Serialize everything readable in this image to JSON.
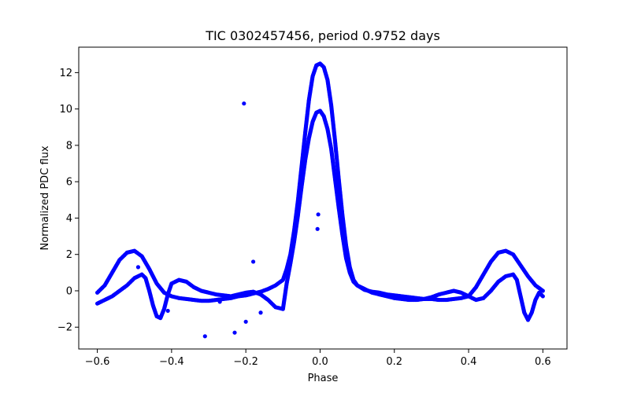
{
  "chart_data": {
    "type": "scatter",
    "title": "TIC 0302457456, period 0.9752 days",
    "xlabel": "Phase",
    "ylabel": "Normalized PDC flux",
    "xlim": [
      -0.65,
      0.665
    ],
    "ylim": [
      -3.2,
      13.4
    ],
    "xticks": [
      -0.6,
      -0.4,
      -0.2,
      0.0,
      0.2,
      0.4,
      0.6
    ],
    "xtick_labels": [
      "−0.6",
      "−0.4",
      "−0.2",
      "0.0",
      "0.2",
      "0.4",
      "0.6"
    ],
    "yticks": [
      -2,
      0,
      2,
      4,
      6,
      8,
      10,
      12
    ],
    "ytick_labels": [
      "−2",
      "0",
      "2",
      "4",
      "6",
      "8",
      "10",
      "12"
    ],
    "grid": false,
    "marker_color": "#0000ff",
    "series": [
      {
        "branch": "upper",
        "x": [
          -0.6,
          -0.58,
          -0.56,
          -0.54,
          -0.52,
          -0.5,
          -0.48,
          -0.46,
          -0.44,
          -0.42,
          -0.4,
          -0.38,
          -0.36,
          -0.34,
          -0.32,
          -0.3,
          -0.28,
          -0.26,
          -0.24,
          -0.22,
          -0.2,
          -0.18,
          -0.16,
          -0.14,
          -0.12,
          -0.1,
          -0.09,
          -0.08,
          -0.07,
          -0.06,
          -0.05,
          -0.04,
          -0.03,
          -0.02,
          -0.01,
          0.0,
          0.01,
          0.02,
          0.03,
          0.04,
          0.05,
          0.06,
          0.07,
          0.08,
          0.09,
          0.1,
          0.12,
          0.14,
          0.16,
          0.18,
          0.2,
          0.22,
          0.24,
          0.26,
          0.28,
          0.3,
          0.32,
          0.34,
          0.36,
          0.38,
          0.4,
          0.42,
          0.44,
          0.46,
          0.48,
          0.5,
          0.52,
          0.54,
          0.56,
          0.58,
          0.6
        ],
        "y": [
          -0.1,
          0.3,
          1.0,
          1.7,
          2.1,
          2.2,
          1.9,
          1.2,
          0.4,
          -0.1,
          -0.3,
          -0.4,
          -0.45,
          -0.5,
          -0.55,
          -0.55,
          -0.5,
          -0.45,
          -0.4,
          -0.3,
          -0.25,
          -0.15,
          -0.05,
          0.1,
          0.3,
          0.6,
          1.2,
          2.0,
          3.3,
          4.9,
          6.8,
          8.7,
          10.5,
          11.8,
          12.4,
          12.5,
          12.3,
          11.6,
          10.2,
          8.3,
          6.2,
          4.2,
          2.5,
          1.3,
          0.6,
          0.3,
          0.05,
          -0.05,
          -0.1,
          -0.2,
          -0.25,
          -0.3,
          -0.35,
          -0.4,
          -0.45,
          -0.45,
          -0.5,
          -0.5,
          -0.45,
          -0.4,
          -0.3,
          0.2,
          0.9,
          1.6,
          2.1,
          2.2,
          2.0,
          1.4,
          0.8,
          0.3,
          0.0
        ]
      },
      {
        "branch": "lower",
        "x": [
          -0.6,
          -0.58,
          -0.56,
          -0.54,
          -0.52,
          -0.5,
          -0.48,
          -0.47,
          -0.46,
          -0.45,
          -0.44,
          -0.43,
          -0.42,
          -0.41,
          -0.4,
          -0.38,
          -0.36,
          -0.34,
          -0.32,
          -0.3,
          -0.28,
          -0.26,
          -0.24,
          -0.22,
          -0.2,
          -0.18,
          -0.16,
          -0.14,
          -0.12,
          -0.1,
          -0.09,
          -0.08,
          -0.07,
          -0.06,
          -0.05,
          -0.04,
          -0.03,
          -0.02,
          -0.01,
          0.0,
          0.01,
          0.02,
          0.03,
          0.04,
          0.05,
          0.06,
          0.07,
          0.08,
          0.09,
          0.1,
          0.12,
          0.14,
          0.16,
          0.18,
          0.2,
          0.22,
          0.24,
          0.26,
          0.28,
          0.3,
          0.32,
          0.34,
          0.36,
          0.38,
          0.4,
          0.42,
          0.44,
          0.46,
          0.48,
          0.5,
          0.52,
          0.53,
          0.54,
          0.55,
          0.56,
          0.57,
          0.58,
          0.59,
          0.6
        ],
        "y": [
          -0.7,
          -0.5,
          -0.3,
          0.0,
          0.3,
          0.7,
          0.9,
          0.7,
          0.0,
          -0.8,
          -1.4,
          -1.5,
          -1.0,
          -0.2,
          0.4,
          0.6,
          0.5,
          0.2,
          0.0,
          -0.1,
          -0.2,
          -0.25,
          -0.3,
          -0.2,
          -0.1,
          -0.05,
          -0.2,
          -0.5,
          -0.9,
          -1.0,
          0.4,
          1.5,
          2.7,
          4.1,
          5.7,
          7.2,
          8.4,
          9.3,
          9.8,
          9.9,
          9.6,
          8.9,
          7.8,
          6.2,
          4.6,
          3.1,
          1.8,
          1.0,
          0.5,
          0.3,
          0.1,
          -0.1,
          -0.2,
          -0.3,
          -0.4,
          -0.45,
          -0.5,
          -0.5,
          -0.45,
          -0.35,
          -0.2,
          -0.1,
          0.0,
          -0.1,
          -0.3,
          -0.5,
          -0.4,
          0.0,
          0.5,
          0.8,
          0.9,
          0.6,
          -0.3,
          -1.2,
          -1.6,
          -1.2,
          -0.5,
          -0.1,
          -0.3
        ]
      },
      {
        "branch": "outliers",
        "x": [
          -0.205,
          -0.31,
          -0.23,
          -0.2,
          -0.18,
          -0.16,
          -0.27,
          -0.005,
          -0.007,
          -0.49,
          -0.41
        ],
        "y": [
          10.3,
          -2.5,
          -2.3,
          -1.7,
          1.6,
          -1.2,
          -0.6,
          4.2,
          3.4,
          1.3,
          -1.1
        ]
      }
    ]
  }
}
